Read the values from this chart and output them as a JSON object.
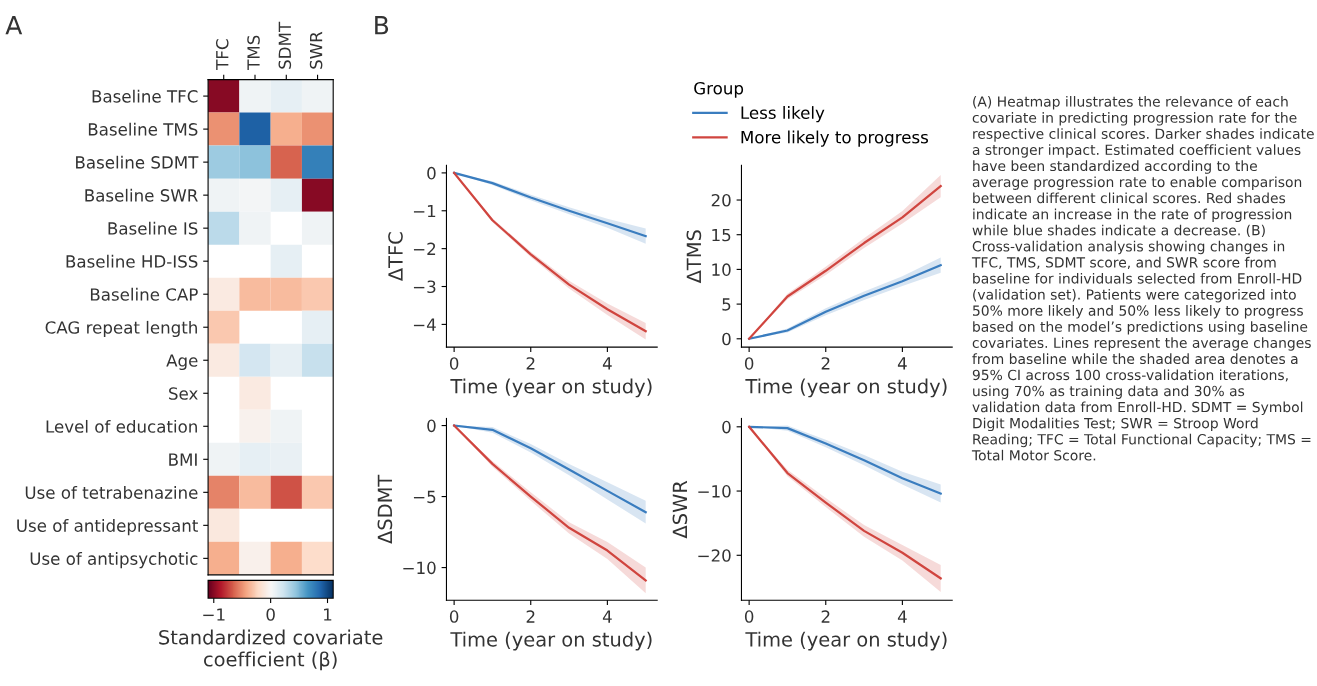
{
  "chart_data": [
    {
      "type": "heatmap",
      "annotations": [
        "A"
      ],
      "categories": [
        "TFC",
        "TMS",
        "SDMT",
        "SWR"
      ],
      "y_categories": [
        "Baseline TFC",
        "Baseline TMS",
        "Baseline SDMT",
        "Baseline SWR",
        "Baseline IS",
        "Baseline HD-ISS",
        "Baseline CAP",
        "CAG repeat length",
        "Age",
        "Sex",
        "Level of education",
        "BMI",
        "Use of tetrabenazine",
        "Use of antidepressant",
        "Use of antipsychotic"
      ],
      "cells": [
        [
          -1.0,
          0.05,
          0.1,
          0.05
        ],
        [
          -0.5,
          0.9,
          -0.4,
          -0.5
        ],
        [
          0.4,
          0.45,
          -0.65,
          0.75
        ],
        [
          0.05,
          0.02,
          0.1,
          -1.0
        ],
        [
          0.3,
          0.05,
          null,
          0.05
        ],
        [
          null,
          null,
          0.1,
          null
        ],
        [
          -0.1,
          -0.35,
          -0.35,
          -0.3
        ],
        [
          -0.3,
          null,
          null,
          0.1
        ],
        [
          -0.1,
          0.2,
          0.1,
          0.25
        ],
        [
          null,
          -0.1,
          null,
          null
        ],
        [
          null,
          -0.05,
          0.05,
          null
        ],
        [
          0.05,
          0.1,
          0.08,
          null
        ],
        [
          -0.55,
          -0.35,
          -0.7,
          -0.3
        ],
        [
          -0.12,
          null,
          null,
          null
        ],
        [
          -0.4,
          -0.06,
          -0.4,
          -0.2
        ]
      ],
      "clim": [
        -1.1,
        1.1
      ],
      "cticks": [
        {
          "value": -1,
          "label": "−1"
        },
        0,
        1
      ],
      "clabel": "Standardized covariate\ncoefficient (β)"
    },
    {
      "type": "line",
      "annotations": [
        "B"
      ],
      "ylabel": "ΔTFC",
      "xlabel": "Time (year on study)",
      "x": [
        0,
        1,
        2,
        3,
        4,
        5
      ],
      "xlim": [
        -0.2,
        5.3
      ],
      "xticks": [
        0,
        2,
        4
      ],
      "ylim": [
        -4.6,
        0.2
      ],
      "yticks": [
        {
          "value": -4,
          "label": "−4"
        },
        {
          "value": -3,
          "label": "−3"
        },
        {
          "value": -2,
          "label": "−2"
        },
        {
          "value": -1,
          "label": "−1"
        },
        0
      ],
      "series": [
        {
          "color": "#3a7dbf",
          "values": [
            0,
            -0.27,
            -0.65,
            -1.0,
            -1.33,
            -1.67
          ],
          "lower": [
            0,
            -0.32,
            -0.72,
            -1.09,
            -1.45,
            -1.87
          ],
          "upper": [
            0,
            -0.22,
            -0.58,
            -0.91,
            -1.21,
            -1.47
          ]
        },
        {
          "color": "#d0453f",
          "values": [
            0,
            -1.25,
            -2.15,
            -2.95,
            -3.6,
            -4.18
          ],
          "lower": [
            0,
            -1.3,
            -2.22,
            -3.05,
            -3.75,
            -4.4
          ],
          "upper": [
            0,
            -1.2,
            -2.08,
            -2.85,
            -3.45,
            -3.96
          ]
        }
      ]
    },
    {
      "type": "line",
      "ylabel": "ΔTMS",
      "xlabel": "Time (year on study)",
      "x": [
        0,
        1,
        2,
        3,
        4,
        5
      ],
      "legend_title": "Group",
      "legend": "top",
      "xlim": [
        -0.2,
        5.3
      ],
      "xticks": [
        0,
        2,
        4
      ],
      "ylim": [
        -1.2,
        25
      ],
      "yticks": [
        0,
        5,
        10,
        15,
        20
      ],
      "series": [
        {
          "name": "Less likely",
          "color": "#3a7dbf",
          "values": [
            0,
            1.2,
            3.9,
            6.2,
            8.3,
            10.6
          ],
          "lower": [
            0,
            0.9,
            3.4,
            5.6,
            7.6,
            9.5
          ],
          "upper": [
            0,
            1.5,
            4.4,
            6.8,
            9.0,
            11.7
          ]
        },
        {
          "name": "More likely to progress",
          "color": "#d0453f",
          "values": [
            0,
            6.1,
            9.8,
            13.8,
            17.5,
            22.0
          ],
          "lower": [
            0,
            5.7,
            9.2,
            13.1,
            16.6,
            20.4
          ],
          "upper": [
            0,
            6.5,
            10.4,
            14.5,
            18.4,
            23.6
          ]
        }
      ]
    },
    {
      "type": "line",
      "ylabel": "ΔSDMT",
      "xlabel": "Time (year on study)",
      "x": [
        0,
        1,
        2,
        3,
        4,
        5
      ],
      "xlim": [
        -0.2,
        5.3
      ],
      "xticks": [
        0,
        2,
        4
      ],
      "ylim": [
        -12.3,
        0.5
      ],
      "yticks": [
        {
          "value": -10,
          "label": "−10"
        },
        {
          "value": -5,
          "label": "−5"
        },
        0
      ],
      "series": [
        {
          "color": "#3a7dbf",
          "values": [
            0,
            -0.3,
            -1.6,
            -3.1,
            -4.6,
            -6.1
          ],
          "lower": [
            0,
            -0.5,
            -1.9,
            -3.5,
            -5.2,
            -6.9
          ],
          "upper": [
            0,
            -0.1,
            -1.3,
            -2.7,
            -4.0,
            -5.3
          ]
        },
        {
          "color": "#d0453f",
          "values": [
            0,
            -2.7,
            -5.0,
            -7.2,
            -8.8,
            -10.9
          ],
          "lower": [
            0,
            -2.9,
            -5.3,
            -7.6,
            -9.4,
            -11.8
          ],
          "upper": [
            0,
            -2.5,
            -4.7,
            -6.8,
            -8.2,
            -10.0
          ]
        }
      ]
    },
    {
      "type": "line",
      "ylabel": "ΔSWR",
      "xlabel": "Time (year on study)",
      "x": [
        0,
        1,
        2,
        3,
        4,
        5
      ],
      "xlim": [
        -0.2,
        5.3
      ],
      "xticks": [
        0,
        2,
        4
      ],
      "ylim": [
        -27,
        1.3
      ],
      "yticks": [
        {
          "value": -20,
          "label": "−20"
        },
        {
          "value": -10,
          "label": "−10"
        },
        0
      ],
      "series": [
        {
          "color": "#3a7dbf",
          "values": [
            0,
            -0.2,
            -2.6,
            -5.2,
            -8.0,
            -10.4
          ],
          "lower": [
            0,
            -0.6,
            -3.2,
            -6.0,
            -9.0,
            -11.8
          ],
          "upper": [
            0,
            0.2,
            -2.0,
            -4.4,
            -7.0,
            -9.0
          ]
        },
        {
          "color": "#d0453f",
          "values": [
            0,
            -7.2,
            -11.8,
            -16.2,
            -19.6,
            -23.6
          ],
          "lower": [
            0,
            -7.7,
            -12.5,
            -17.1,
            -20.8,
            -25.7
          ],
          "upper": [
            0,
            -6.7,
            -11.1,
            -15.3,
            -18.4,
            -21.5
          ]
        }
      ]
    },
    {
      "type": "other",
      "annotations": [
        "(A) Heatmap illustrates the relevance of each covariate in predicting progression rate for the respective clinical scores. Darker shades indicate a stronger impact. Estimated coefficient values have been standardized according to the average progression rate to enable comparison between different clinical scores. Red shades indicate an increase in the rate of progression while blue shades indicate a decrease. (B) Cross-validation analysis showing changes in TFC, TMS, SDMT score, and SWR score from baseline for individuals selected from Enroll-HD (validation set). Patients were categorized into 50% more likely and 50% less likely to progress based on the model’s predictions using baseline covariates. Lines represent the average changes from baseline while the shaded area denotes a 95% CI across 100 cross-validation iterations, using 70% as training data and 30% as validation data from Enroll-HD. SDMT = Symbol Digit Modalities Test; SWR = Stroop Word Reading; TFC = Total Functional Capacity; TMS = Total Motor Score."
      ]
    }
  ]
}
